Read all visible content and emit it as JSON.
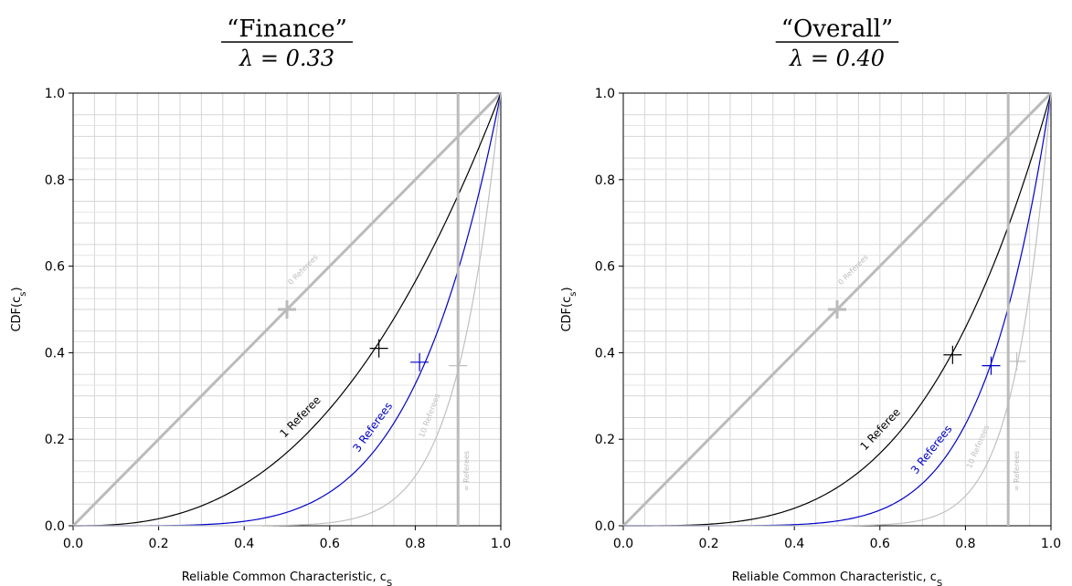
{
  "chart_data": [
    {
      "type": "line",
      "title": "“Finance”",
      "subtitle": "λ = 0.33",
      "xlabel": "Reliable Common Characteristic,  c",
      "xlabel_sub": "S",
      "ylabel": "CDF(c",
      "ylabel_sub": "s",
      "ylabel_close": ")",
      "xlim": [
        0,
        1
      ],
      "ylim": [
        0,
        1
      ],
      "xticks": [
        0.0,
        0.2,
        0.4,
        0.6,
        0.8,
        1.0
      ],
      "xtick_labels": [
        "0.0",
        "0.2",
        "0.4",
        "0.6",
        "0.8",
        "1.0"
      ],
      "yticks": [
        0.0,
        0.2,
        0.4,
        0.6,
        0.8,
        1.0
      ],
      "ytick_labels": [
        "0.0",
        "0.2",
        "0.4",
        "0.6",
        "0.8",
        "1.0"
      ],
      "grid": true,
      "series": [
        {
          "name": "0 Referees",
          "color": "#bbbbbb",
          "exponent": 1,
          "marker": [
            0.5,
            0.5
          ]
        },
        {
          "name": "1 Referee",
          "color": "#000000",
          "exponent": 2.56,
          "marker": [
            0.715,
            0.41
          ]
        },
        {
          "name": "3 Referees",
          "color": "#0000c8",
          "exponent": 5.0,
          "marker": [
            0.81,
            0.378
          ]
        },
        {
          "name": "10 Referees",
          "color": "#c0c0c0",
          "exponent": 9.7,
          "marker": [
            0.9,
            0.37
          ]
        },
        {
          "name": "∞ Referees",
          "color": "#bbbbbb",
          "vertical_x": 0.9
        }
      ]
    },
    {
      "type": "line",
      "title": "“Overall”",
      "subtitle": "λ = 0.40",
      "xlabel": "Reliable Common Characteristic,  c",
      "xlabel_sub": "S",
      "ylabel": "CDF(c",
      "ylabel_sub": "s",
      "ylabel_close": ")",
      "xlim": [
        0,
        1
      ],
      "ylim": [
        0,
        1
      ],
      "xticks": [
        0.0,
        0.2,
        0.4,
        0.6,
        0.8,
        1.0
      ],
      "xtick_labels": [
        "0.0",
        "0.2",
        "0.4",
        "0.6",
        "0.8",
        "1.0"
      ],
      "yticks": [
        0.0,
        0.2,
        0.4,
        0.6,
        0.8,
        1.0
      ],
      "ytick_labels": [
        "0.0",
        "0.2",
        "0.4",
        "0.6",
        "0.8",
        "1.0"
      ],
      "grid": true,
      "series": [
        {
          "name": "0 Referees",
          "color": "#bbbbbb",
          "exponent": 1,
          "marker": [
            0.5,
            0.5
          ]
        },
        {
          "name": "1 Referee",
          "color": "#000000",
          "exponent": 3.5,
          "marker": [
            0.77,
            0.395
          ]
        },
        {
          "name": "3 Referees",
          "color": "#0000c8",
          "exponent": 6.5,
          "marker": [
            0.86,
            0.37
          ]
        },
        {
          "name": "10 Referees",
          "color": "#c0c0c0",
          "exponent": 12,
          "marker": [
            0.92,
            0.38
          ]
        },
        {
          "name": "∞ Referees",
          "color": "#bbbbbb",
          "vertical_x": 0.9
        }
      ]
    }
  ]
}
